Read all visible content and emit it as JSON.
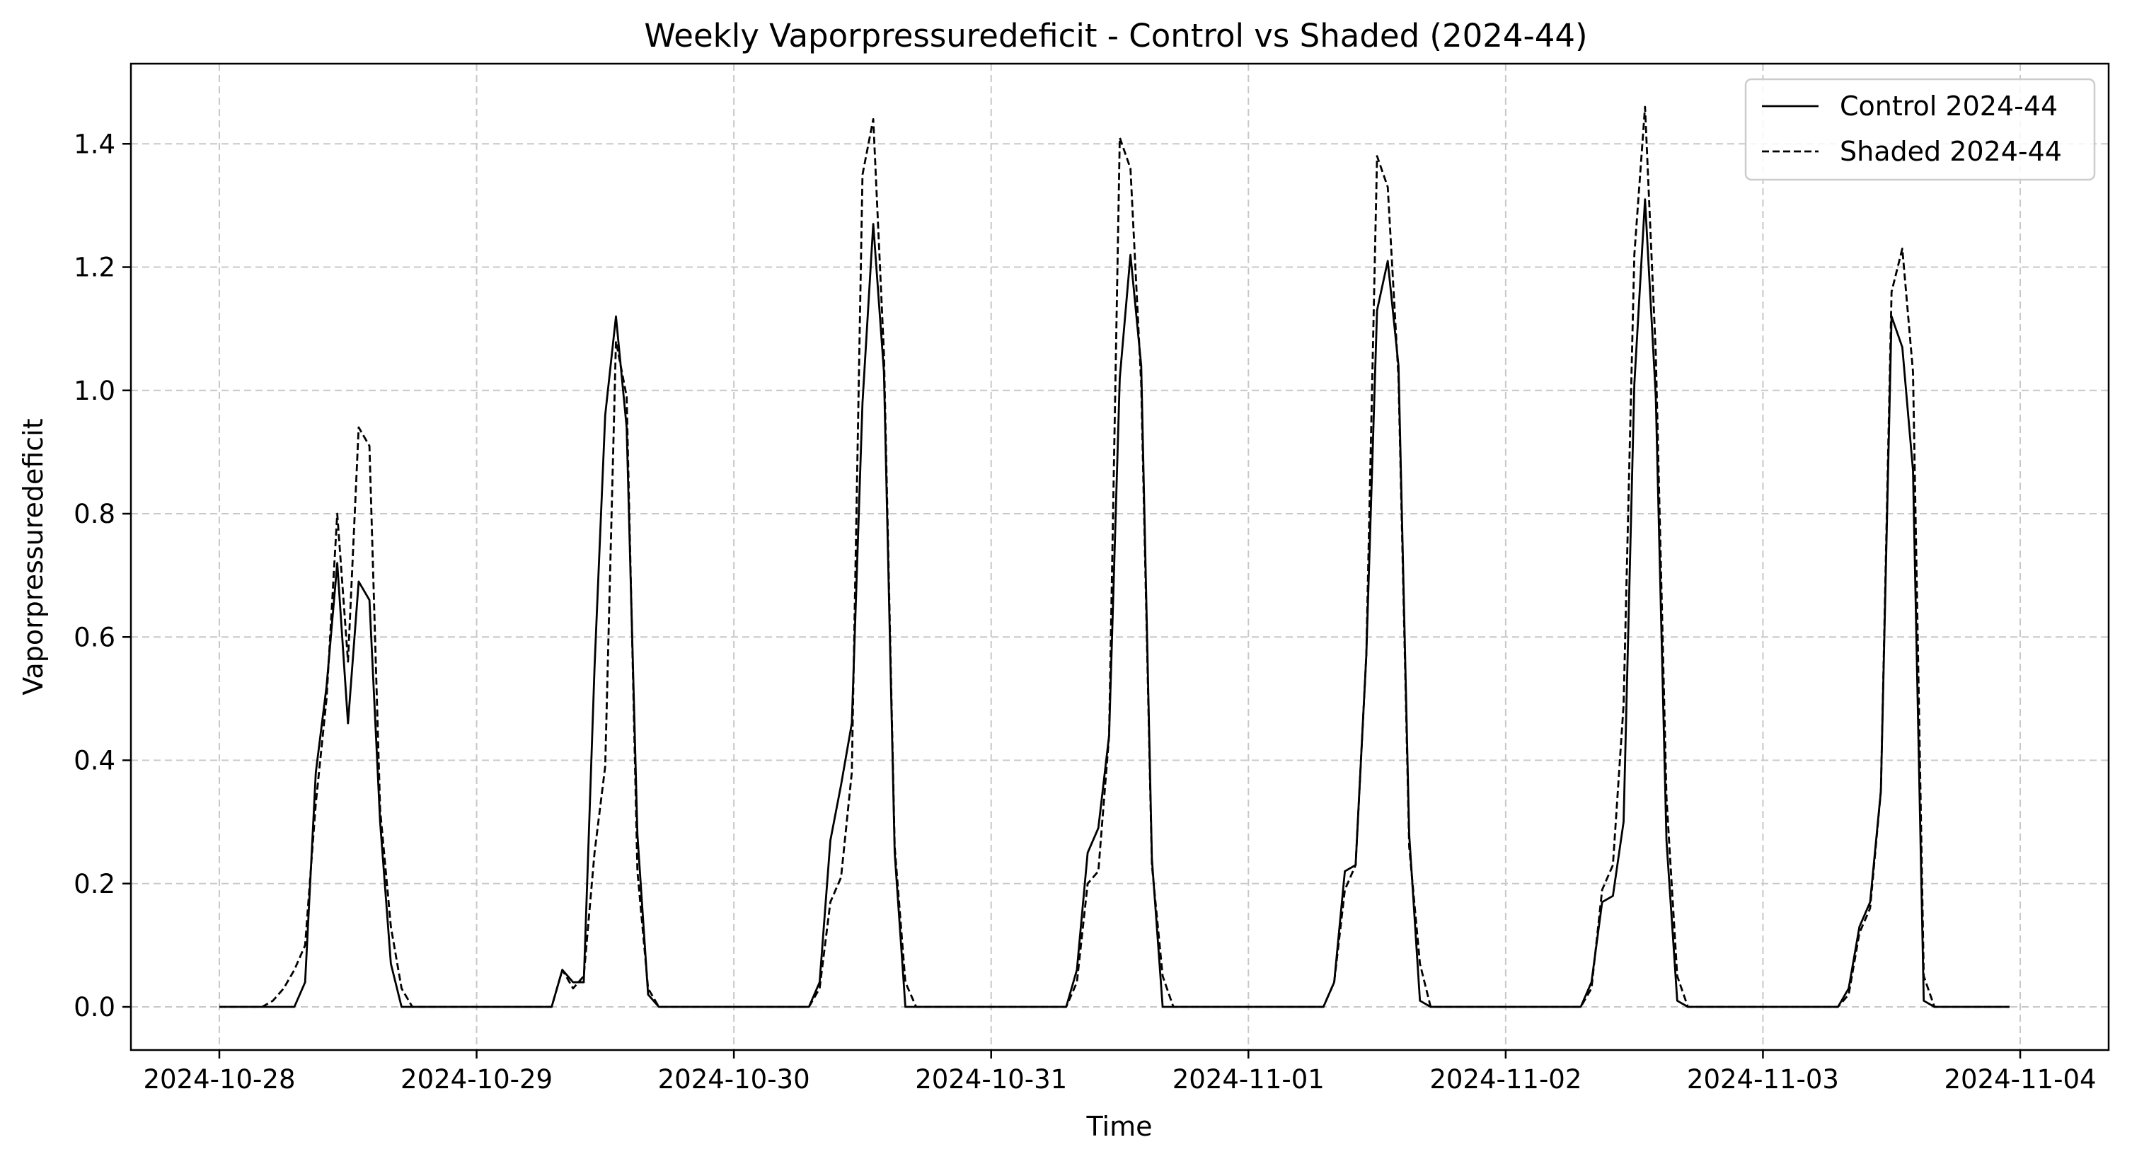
{
  "chart_data": {
    "type": "line",
    "title": "Weekly Vaporpressuredeficit - Control vs Shaded (2024-44)",
    "xlabel": "Time",
    "ylabel": "Vaporpressuredeficit",
    "x_ticks": [
      "2024-10-28",
      "2024-10-29",
      "2024-10-30",
      "2024-10-31",
      "2024-11-01",
      "2024-11-02",
      "2024-11-03",
      "2024-11-04"
    ],
    "y_ticks": [
      "0.0",
      "0.2",
      "0.4",
      "0.6",
      "0.8",
      "1.0",
      "1.2",
      "1.4"
    ],
    "xlim": [
      "2024-10-27 15:45",
      "2024-11-04 08:15"
    ],
    "ylim": [
      -0.07,
      1.53
    ],
    "grid": true,
    "legend_position": "top-right",
    "series": [
      {
        "name": "Control 2024-44",
        "style": "solid",
        "color": "#000000",
        "points": [
          [
            "2024-10-28 00:00",
            0.0
          ],
          [
            "2024-10-28 04:00",
            0.0
          ],
          [
            "2024-10-28 07:00",
            0.0
          ],
          [
            "2024-10-28 08:00",
            0.04
          ],
          [
            "2024-10-28 09:00",
            0.38
          ],
          [
            "2024-10-28 10:00",
            0.52
          ],
          [
            "2024-10-28 11:00",
            0.72
          ],
          [
            "2024-10-28 12:00",
            0.46
          ],
          [
            "2024-10-28 13:00",
            0.69
          ],
          [
            "2024-10-28 14:00",
            0.66
          ],
          [
            "2024-10-28 15:00",
            0.3
          ],
          [
            "2024-10-28 16:00",
            0.07
          ],
          [
            "2024-10-28 17:00",
            0.0
          ],
          [
            "2024-10-29 07:00",
            0.0
          ],
          [
            "2024-10-29 08:00",
            0.06
          ],
          [
            "2024-10-29 09:00",
            0.04
          ],
          [
            "2024-10-29 10:00",
            0.04
          ],
          [
            "2024-10-29 11:00",
            0.55
          ],
          [
            "2024-10-29 12:00",
            0.96
          ],
          [
            "2024-10-29 13:00",
            1.12
          ],
          [
            "2024-10-29 14:00",
            0.94
          ],
          [
            "2024-10-29 15:00",
            0.28
          ],
          [
            "2024-10-29 16:00",
            0.02
          ],
          [
            "2024-10-29 17:00",
            0.0
          ],
          [
            "2024-10-30 07:00",
            0.0
          ],
          [
            "2024-10-30 08:00",
            0.04
          ],
          [
            "2024-10-30 09:00",
            0.27
          ],
          [
            "2024-10-30 10:00",
            0.36
          ],
          [
            "2024-10-30 11:00",
            0.46
          ],
          [
            "2024-10-30 12:00",
            0.98
          ],
          [
            "2024-10-30 13:00",
            1.27
          ],
          [
            "2024-10-30 14:00",
            1.03
          ],
          [
            "2024-10-30 15:00",
            0.25
          ],
          [
            "2024-10-30 16:00",
            0.0
          ],
          [
            "2024-10-31 07:00",
            0.0
          ],
          [
            "2024-10-31 08:00",
            0.06
          ],
          [
            "2024-10-31 09:00",
            0.25
          ],
          [
            "2024-10-31 10:00",
            0.29
          ],
          [
            "2024-10-31 11:00",
            0.44
          ],
          [
            "2024-10-31 12:00",
            1.02
          ],
          [
            "2024-10-31 13:00",
            1.22
          ],
          [
            "2024-10-31 14:00",
            1.04
          ],
          [
            "2024-10-31 15:00",
            0.24
          ],
          [
            "2024-10-31 16:00",
            0.0
          ],
          [
            "2024-11-01 07:00",
            0.0
          ],
          [
            "2024-11-01 08:00",
            0.04
          ],
          [
            "2024-11-01 09:00",
            0.22
          ],
          [
            "2024-11-01 10:00",
            0.23
          ],
          [
            "2024-11-01 11:00",
            0.57
          ],
          [
            "2024-11-01 12:00",
            1.13
          ],
          [
            "2024-11-01 13:00",
            1.21
          ],
          [
            "2024-11-01 14:00",
            1.04
          ],
          [
            "2024-11-01 15:00",
            0.28
          ],
          [
            "2024-11-01 16:00",
            0.01
          ],
          [
            "2024-11-01 17:00",
            0.0
          ],
          [
            "2024-11-02 07:00",
            0.0
          ],
          [
            "2024-11-02 08:00",
            0.04
          ],
          [
            "2024-11-02 09:00",
            0.17
          ],
          [
            "2024-11-02 10:00",
            0.18
          ],
          [
            "2024-11-02 11:00",
            0.3
          ],
          [
            "2024-11-02 12:00",
            1.01
          ],
          [
            "2024-11-02 13:00",
            1.31
          ],
          [
            "2024-11-02 14:00",
            0.99
          ],
          [
            "2024-11-02 15:00",
            0.27
          ],
          [
            "2024-11-02 16:00",
            0.01
          ],
          [
            "2024-11-02 17:00",
            0.0
          ],
          [
            "2024-11-03 07:00",
            0.0
          ],
          [
            "2024-11-03 08:00",
            0.03
          ],
          [
            "2024-11-03 09:00",
            0.13
          ],
          [
            "2024-11-03 10:00",
            0.17
          ],
          [
            "2024-11-03 11:00",
            0.35
          ],
          [
            "2024-11-03 12:00",
            1.12
          ],
          [
            "2024-11-03 13:00",
            1.07
          ],
          [
            "2024-11-03 14:00",
            0.87
          ],
          [
            "2024-11-03 15:00",
            0.01
          ],
          [
            "2024-11-03 16:00",
            0.0
          ],
          [
            "2024-11-03 23:00",
            0.0
          ]
        ]
      },
      {
        "name": "Shaded 2024-44",
        "style": "dashed",
        "color": "#000000",
        "points": [
          [
            "2024-10-28 00:00",
            0.0
          ],
          [
            "2024-10-28 04:00",
            0.0
          ],
          [
            "2024-10-28 05:00",
            0.01
          ],
          [
            "2024-10-28 06:00",
            0.03
          ],
          [
            "2024-10-28 07:00",
            0.06
          ],
          [
            "2024-10-28 08:00",
            0.1
          ],
          [
            "2024-10-28 09:00",
            0.33
          ],
          [
            "2024-10-28 10:00",
            0.5
          ],
          [
            "2024-10-28 11:00",
            0.8
          ],
          [
            "2024-10-28 12:00",
            0.56
          ],
          [
            "2024-10-28 13:00",
            0.94
          ],
          [
            "2024-10-28 14:00",
            0.91
          ],
          [
            "2024-10-28 15:00",
            0.32
          ],
          [
            "2024-10-28 16:00",
            0.13
          ],
          [
            "2024-10-28 17:00",
            0.03
          ],
          [
            "2024-10-28 18:00",
            0.0
          ],
          [
            "2024-10-29 07:00",
            0.0
          ],
          [
            "2024-10-29 08:00",
            0.06
          ],
          [
            "2024-10-29 09:00",
            0.03
          ],
          [
            "2024-10-29 10:00",
            0.05
          ],
          [
            "2024-10-29 11:00",
            0.25
          ],
          [
            "2024-10-29 12:00",
            0.39
          ],
          [
            "2024-10-29 13:00",
            1.08
          ],
          [
            "2024-10-29 14:00",
            0.99
          ],
          [
            "2024-10-29 15:00",
            0.22
          ],
          [
            "2024-10-29 16:00",
            0.03
          ],
          [
            "2024-10-29 17:00",
            0.0
          ],
          [
            "2024-10-30 07:00",
            0.0
          ],
          [
            "2024-10-30 08:00",
            0.03
          ],
          [
            "2024-10-30 09:00",
            0.17
          ],
          [
            "2024-10-30 10:00",
            0.21
          ],
          [
            "2024-10-30 11:00",
            0.38
          ],
          [
            "2024-10-30 12:00",
            1.35
          ],
          [
            "2024-10-30 13:00",
            1.44
          ],
          [
            "2024-10-30 14:00",
            1.06
          ],
          [
            "2024-10-30 15:00",
            0.26
          ],
          [
            "2024-10-30 16:00",
            0.04
          ],
          [
            "2024-10-30 17:00",
            0.0
          ],
          [
            "2024-10-31 07:00",
            0.0
          ],
          [
            "2024-10-31 08:00",
            0.04
          ],
          [
            "2024-10-31 09:00",
            0.2
          ],
          [
            "2024-10-31 10:00",
            0.22
          ],
          [
            "2024-10-31 11:00",
            0.44
          ],
          [
            "2024-10-31 12:00",
            1.41
          ],
          [
            "2024-10-31 13:00",
            1.36
          ],
          [
            "2024-10-31 14:00",
            1.01
          ],
          [
            "2024-10-31 15:00",
            0.23
          ],
          [
            "2024-10-31 16:00",
            0.05
          ],
          [
            "2024-10-31 17:00",
            0.0
          ],
          [
            "2024-11-01 07:00",
            0.0
          ],
          [
            "2024-11-01 08:00",
            0.04
          ],
          [
            "2024-11-01 09:00",
            0.19
          ],
          [
            "2024-11-01 10:00",
            0.23
          ],
          [
            "2024-11-01 11:00",
            0.57
          ],
          [
            "2024-11-01 12:00",
            1.38
          ],
          [
            "2024-11-01 13:00",
            1.33
          ],
          [
            "2024-11-01 14:00",
            1.02
          ],
          [
            "2024-11-01 15:00",
            0.26
          ],
          [
            "2024-11-01 16:00",
            0.07
          ],
          [
            "2024-11-01 17:00",
            0.0
          ],
          [
            "2024-11-02 07:00",
            0.0
          ],
          [
            "2024-11-02 08:00",
            0.03
          ],
          [
            "2024-11-02 09:00",
            0.19
          ],
          [
            "2024-11-02 10:00",
            0.23
          ],
          [
            "2024-11-02 11:00",
            0.49
          ],
          [
            "2024-11-02 12:00",
            1.22
          ],
          [
            "2024-11-02 13:00",
            1.46
          ],
          [
            "2024-11-02 14:00",
            1.06
          ],
          [
            "2024-11-02 15:00",
            0.34
          ],
          [
            "2024-11-02 16:00",
            0.05
          ],
          [
            "2024-11-02 17:00",
            0.0
          ],
          [
            "2024-11-03 07:00",
            0.0
          ],
          [
            "2024-11-03 08:00",
            0.02
          ],
          [
            "2024-11-03 09:00",
            0.12
          ],
          [
            "2024-11-03 10:00",
            0.16
          ],
          [
            "2024-11-03 11:00",
            0.35
          ],
          [
            "2024-11-03 12:00",
            1.16
          ],
          [
            "2024-11-03 13:00",
            1.23
          ],
          [
            "2024-11-03 14:00",
            1.03
          ],
          [
            "2024-11-03 15:00",
            0.05
          ],
          [
            "2024-11-03 16:00",
            0.0
          ],
          [
            "2024-11-03 23:00",
            0.0
          ]
        ]
      }
    ]
  }
}
